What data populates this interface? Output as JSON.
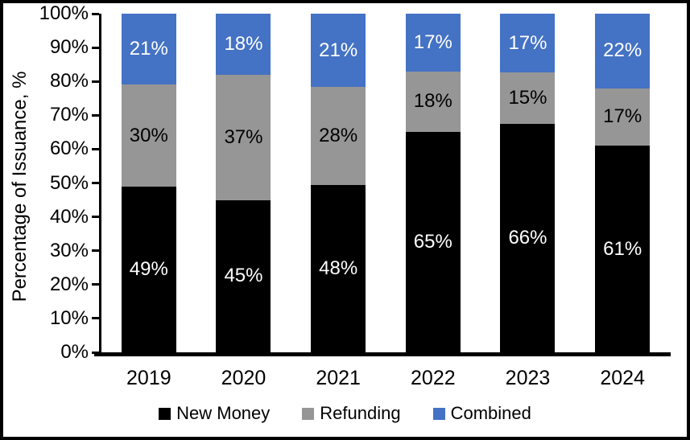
{
  "chart_data": {
    "type": "bar",
    "stacked": true,
    "percent_stacked": true,
    "title": "",
    "xlabel": "",
    "ylabel": "Percentage of Issuance, %",
    "ylim": [
      0,
      100
    ],
    "yticks": [
      "0%",
      "10%",
      "20%",
      "30%",
      "40%",
      "50%",
      "60%",
      "70%",
      "80%",
      "90%",
      "100%"
    ],
    "grid": false,
    "legend_position": "bottom",
    "value_suffix": "%",
    "categories": [
      "2019",
      "2020",
      "2021",
      "2022",
      "2023",
      "2024"
    ],
    "series": [
      {
        "name": "New Money",
        "color": "#000000",
        "label_color": "#ffffff",
        "values": [
          49,
          45,
          48,
          65,
          66,
          61
        ]
      },
      {
        "name": "Refunding",
        "color": "#969696",
        "label_color": "#000000",
        "values": [
          30,
          37,
          28,
          18,
          15,
          17
        ]
      },
      {
        "name": "Combined",
        "color": "#4472C4",
        "label_color": "#ffffff",
        "values": [
          21,
          18,
          21,
          17,
          17,
          22
        ]
      }
    ]
  },
  "frame": {
    "background": "#ffffff",
    "border_color": "#000000"
  }
}
